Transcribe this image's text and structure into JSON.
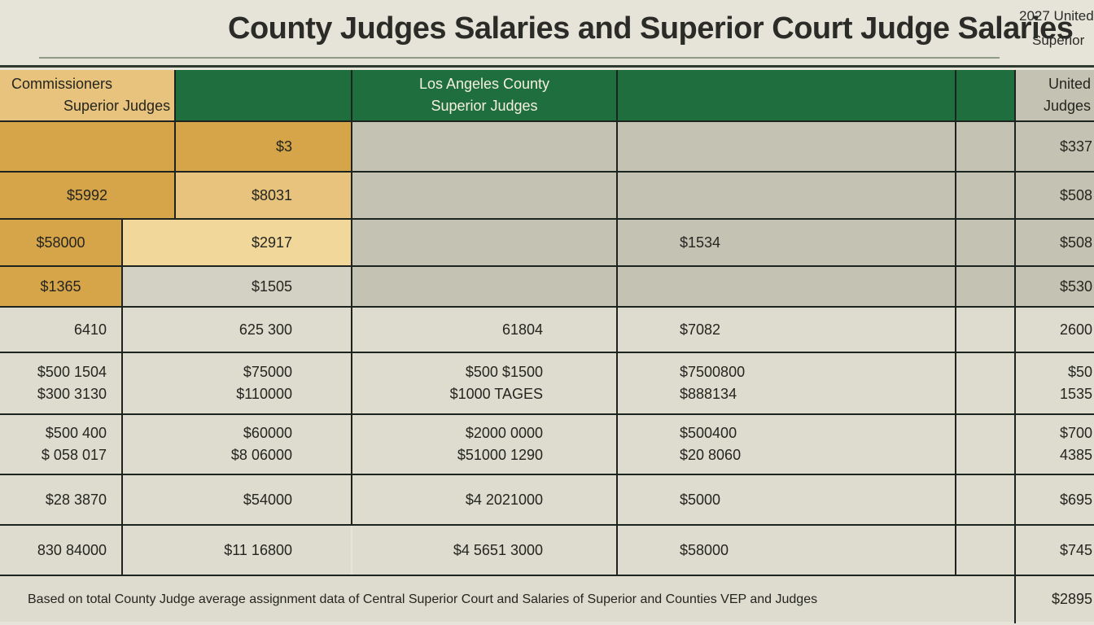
{
  "title": "County Judges Salaries and Superior Court Judge Salaries",
  "corner": {
    "line1": "2027 United",
    "line2": "Superior"
  },
  "headers": {
    "col1": [
      "Commissioners",
      "Superior Judges"
    ],
    "col3": [
      "Los Angeles County",
      "Superior Judges"
    ],
    "col6": [
      "United",
      "Judges"
    ]
  },
  "rows": [
    {
      "c1": [
        ""
      ],
      "c2": [
        "$3"
      ],
      "c3": [
        ""
      ],
      "c4": [
        ""
      ],
      "c6": [
        "$337"
      ]
    },
    {
      "c1": [
        "$5992"
      ],
      "c2": [
        "$8031"
      ],
      "c3": [
        ""
      ],
      "c4": [
        ""
      ],
      "c6": [
        "$508"
      ]
    },
    {
      "c1": [
        "$58000"
      ],
      "c2": [
        "$2917"
      ],
      "c3": [
        ""
      ],
      "c4": [
        "$1534"
      ],
      "c6": [
        "$508"
      ]
    },
    {
      "c1": [
        "$1365"
      ],
      "c2": [
        "$1505"
      ],
      "c3": [
        ""
      ],
      "c4": [
        ""
      ],
      "c6": [
        "$530"
      ]
    },
    {
      "c1": [
        "6410"
      ],
      "c2": [
        "625 300"
      ],
      "c3": [
        "61804"
      ],
      "c4": [
        "$7082"
      ],
      "c6": [
        "2600"
      ]
    },
    {
      "c1": [
        "$500 1504",
        "$300 3130"
      ],
      "c2": [
        "$75000",
        "$110000"
      ],
      "c3": [
        "$500 $1500",
        "$1000 TAGES"
      ],
      "c4": [
        "$7500800",
        "$888134"
      ],
      "c6": [
        "$50",
        "1535"
      ]
    },
    {
      "c1": [
        "$500 400",
        "$ 058 017"
      ],
      "c2": [
        "$60000",
        "$8 06000"
      ],
      "c3": [
        "$2000 0000",
        "$51000 1290"
      ],
      "c4": [
        "$500400",
        "$20 8060"
      ],
      "c6": [
        "$700",
        "4385"
      ]
    },
    {
      "c1": [
        "$28 3870"
      ],
      "c2": [
        "$54000"
      ],
      "c3": [
        "$4 2021000"
      ],
      "c4": [
        "$5000"
      ],
      "c6": [
        "$695"
      ]
    },
    {
      "c1": [
        "830 84000"
      ],
      "c2": [
        "$11 16800"
      ],
      "c3": [
        "$4 5651 3000"
      ],
      "c4": [
        "$58000"
      ],
      "c6": [
        "$745"
      ]
    }
  ],
  "footnote": "Based on total County Judge average assignment data of Central Superior Court and Salaries of Superior and Counties VEP and Judges",
  "footnote_right": "$2895"
}
